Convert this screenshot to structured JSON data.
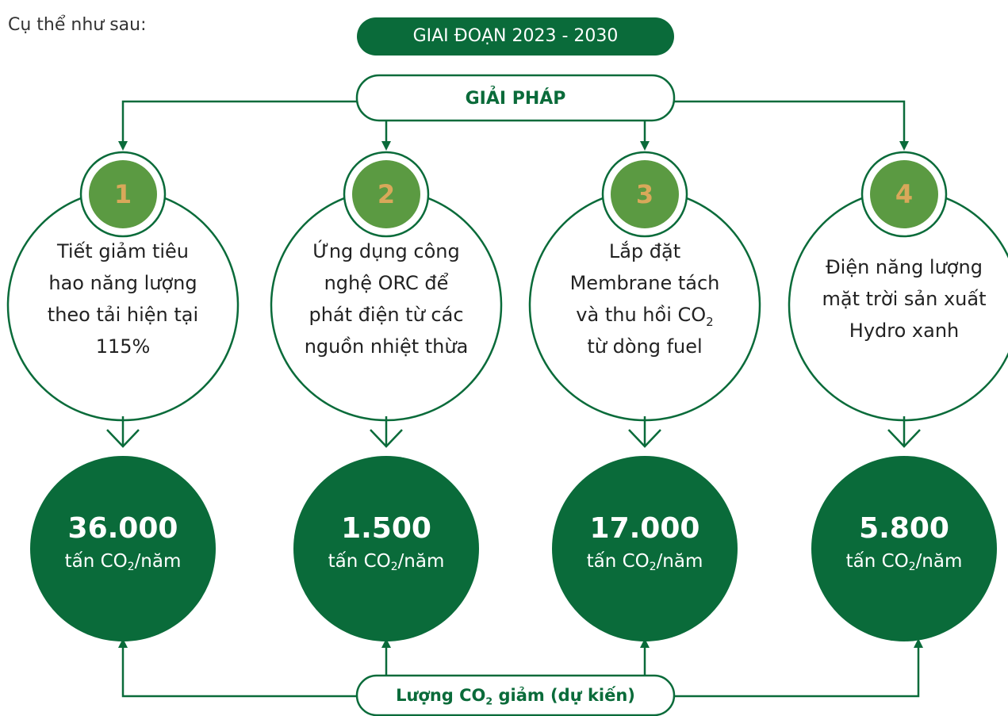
{
  "intro": "Cụ thể như sau:",
  "period": "GIAI ĐOẠN 2023 - 2030",
  "header": "GIẢI PHÁP",
  "solutions": [
    {
      "number": "1",
      "lines": [
        "Tiết giảm tiêu",
        "hao năng lượng",
        "theo tải hiện tại",
        "115%"
      ],
      "result": "36.000",
      "unit": {
        "pre": "tấn CO",
        "sub": "2",
        "post": "/năm"
      }
    },
    {
      "number": "2",
      "lines": [
        "Ứng dụng công",
        "nghệ ORC để",
        "phát điện từ các",
        "nguồn nhiệt thừa"
      ],
      "result": "1.500",
      "unit": {
        "pre": "tấn CO",
        "sub": "2",
        "post": "/năm"
      }
    },
    {
      "number": "3",
      "lines": [
        "Lắp đặt",
        "Membrane tách",
        {
          "text": "và thu hồi CO",
          "sub": "2"
        },
        "từ dòng fuel"
      ],
      "result": "17.000",
      "unit": {
        "pre": "tấn CO",
        "sub": "2",
        "post": "/năm"
      }
    },
    {
      "number": "4",
      "lines": [
        "Điện năng lượng",
        "mặt trời sản xuất",
        "Hydro xanh"
      ],
      "result": "5.800",
      "unit": {
        "pre": "tấn CO",
        "sub": "2",
        "post": "/năm"
      }
    }
  ],
  "footer": {
    "pre": "Lượng CO",
    "sub": "2",
    "post": " giảm (dự kiến)"
  }
}
